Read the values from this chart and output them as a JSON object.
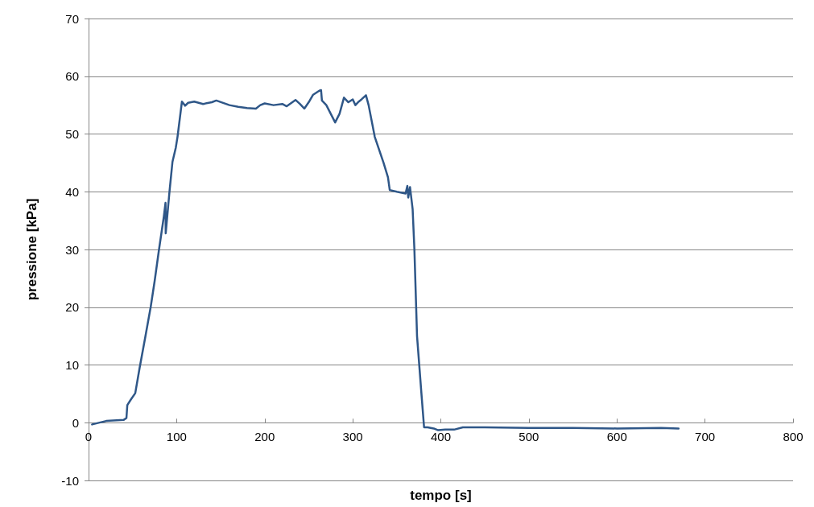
{
  "chart_data": {
    "type": "line",
    "xlabel": "tempo [s]",
    "ylabel": "pressione [kPa]",
    "x": [
      4,
      20,
      40,
      43,
      44,
      48,
      53,
      58,
      64,
      70.5,
      75,
      80,
      85.3,
      87.4,
      87.6,
      92,
      95.3,
      99,
      101,
      106,
      109.7,
      113,
      120,
      130,
      140,
      145,
      160,
      170,
      180,
      190,
      195,
      200,
      210,
      220,
      225,
      235,
      240,
      245,
      250,
      255,
      262,
      264,
      265,
      270,
      280,
      285,
      290,
      295,
      300,
      303,
      306,
      310,
      315,
      318,
      325,
      335,
      340,
      342,
      350,
      360,
      362,
      363,
      365,
      368,
      370,
      373,
      376,
      378,
      381,
      385,
      392,
      397,
      405,
      415,
      425,
      450,
      500,
      550,
      600,
      650,
      670
    ],
    "series": [
      {
        "color": "#2f5788",
        "values": [
          -0.3,
          0.3,
          0.5,
          0.8,
          3.05,
          4,
          5.1,
          9.5,
          14.5,
          20,
          24.5,
          30,
          35.5,
          38.1,
          32.8,
          40.2,
          45.2,
          47.6,
          49.5,
          55.6,
          54.9,
          55.4,
          55.6,
          55.2,
          55.5,
          55.8,
          55,
          54.7,
          54.5,
          54.4,
          55,
          55.3,
          55,
          55.2,
          54.8,
          55.9,
          55.2,
          54.4,
          55.5,
          56.8,
          57.5,
          57.6,
          55.8,
          55,
          52,
          53.5,
          56.3,
          55.5,
          56,
          55,
          55.5,
          56,
          56.7,
          55,
          49.5,
          45,
          42.5,
          40.3,
          40,
          39.7,
          41,
          39,
          40.8,
          37,
          30,
          15,
          9,
          5,
          -0.8,
          -0.8,
          -1,
          -1.3,
          -1.2,
          -1.2,
          -0.8,
          -0.8,
          -0.9,
          -0.9,
          -1,
          -0.9,
          -1
        ]
      }
    ],
    "xlim": [
      0,
      800
    ],
    "xticks": [
      0,
      100,
      200,
      300,
      400,
      500,
      600,
      700,
      800
    ],
    "ylim": [
      -10,
      70
    ],
    "yticks": [
      -10,
      0,
      10,
      20,
      30,
      40,
      50,
      60,
      70
    ],
    "grid": "y",
    "marker": "none",
    "line_style": "solid"
  }
}
